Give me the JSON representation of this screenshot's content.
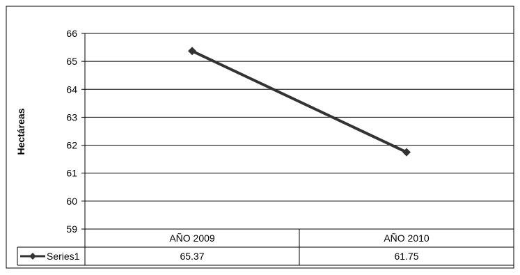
{
  "chart_data": {
    "type": "line",
    "title": "",
    "xlabel": "",
    "ylabel": "Hectáreas",
    "categories": [
      "AÑO 2009",
      "AÑO 2010"
    ],
    "series": [
      {
        "name": "Series1",
        "values": [
          65.37,
          61.75
        ],
        "value_labels": [
          "65.37",
          "61.75"
        ],
        "color": "#333333",
        "marker": "diamond"
      }
    ],
    "ylim": [
      59,
      66
    ],
    "yticks": [
      59,
      60,
      61,
      62,
      63,
      64,
      65,
      66
    ],
    "grid": true,
    "legend": "data-table",
    "data_table": true
  }
}
